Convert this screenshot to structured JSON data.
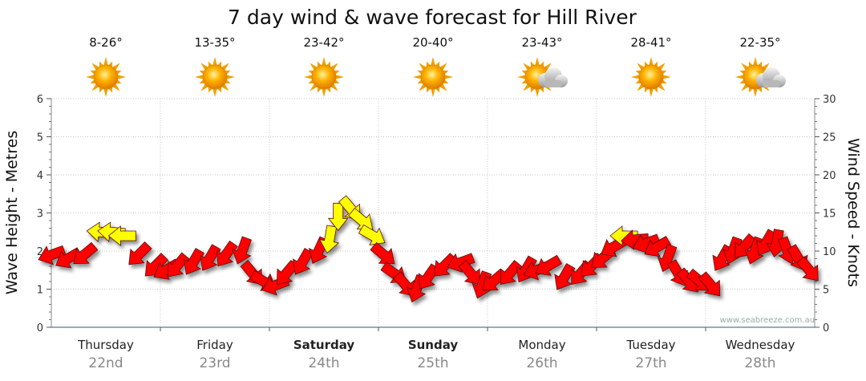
{
  "chart_data": {
    "type": "line",
    "title": "7 day wind & wave forecast for Hill River",
    "ylabel": "Wave Height - Metres",
    "y2label": "Wind Speed - Knots",
    "ylim": [
      0,
      6
    ],
    "y2lim": [
      0,
      30
    ],
    "yticks": [
      "0",
      "1",
      "2",
      "3",
      "4",
      "5",
      "6"
    ],
    "y2ticks": [
      "0",
      "5",
      "10",
      "15",
      "20",
      "25",
      "30"
    ],
    "grid": true,
    "days": [
      {
        "name": "Thursday",
        "date": "22nd",
        "temp": "8-26°",
        "weather": "sun-icon",
        "bold": false
      },
      {
        "name": "Friday",
        "date": "23rd",
        "temp": "13-35°",
        "weather": "sun-icon",
        "bold": false
      },
      {
        "name": "Saturday",
        "date": "24th",
        "temp": "23-42°",
        "weather": "sun-icon",
        "bold": true
      },
      {
        "name": "Sunday",
        "date": "25th",
        "temp": "20-40°",
        "weather": "sun-icon",
        "bold": true
      },
      {
        "name": "Monday",
        "date": "26th",
        "temp": "23-43°",
        "weather": "partly-cloudy-icon",
        "bold": false
      },
      {
        "name": "Tuesday",
        "date": "27th",
        "temp": "28-41°",
        "weather": "sun-icon",
        "bold": false
      },
      {
        "name": "Wednesday",
        "date": "28th",
        "temp": "22-35°",
        "weather": "partly-cloudy-icon",
        "bold": false
      }
    ],
    "series": [
      {
        "type": "wind-arrows",
        "unit": "knots",
        "colors": {
          "strong": "#ff0000",
          "moderate": "#ffff00"
        },
        "points": [
          {
            "day": 0.0,
            "speed": 9.5,
            "dir": 250,
            "color": "strong"
          },
          {
            "day": 0.15,
            "speed": 9.0,
            "dir": 240,
            "color": "strong"
          },
          {
            "day": 0.3,
            "speed": 9.5,
            "dir": 230,
            "color": "strong"
          },
          {
            "day": 0.45,
            "speed": 12.5,
            "dir": 275,
            "color": "moderate"
          },
          {
            "day": 0.55,
            "speed": 12.5,
            "dir": 275,
            "color": "moderate"
          },
          {
            "day": 0.65,
            "speed": 12.0,
            "dir": 270,
            "color": "moderate"
          },
          {
            "day": 0.8,
            "speed": 9.5,
            "dir": 225,
            "color": "strong"
          },
          {
            "day": 0.95,
            "speed": 8.0,
            "dir": 225,
            "color": "strong"
          },
          {
            "day": 1.05,
            "speed": 7.5,
            "dir": 240,
            "color": "strong"
          },
          {
            "day": 1.15,
            "speed": 8.0,
            "dir": 220,
            "color": "strong"
          },
          {
            "day": 1.3,
            "speed": 8.5,
            "dir": 210,
            "color": "strong"
          },
          {
            "day": 1.45,
            "speed": 9.0,
            "dir": 210,
            "color": "strong"
          },
          {
            "day": 1.6,
            "speed": 9.5,
            "dir": 215,
            "color": "strong"
          },
          {
            "day": 1.75,
            "speed": 10.0,
            "dir": 200,
            "color": "strong"
          },
          {
            "day": 1.85,
            "speed": 7.0,
            "dir": 140,
            "color": "strong"
          },
          {
            "day": 1.95,
            "speed": 6.0,
            "dir": 120,
            "color": "strong"
          },
          {
            "day": 2.05,
            "speed": 5.5,
            "dir": 250,
            "color": "strong"
          },
          {
            "day": 2.15,
            "speed": 7.0,
            "dir": 220,
            "color": "strong"
          },
          {
            "day": 2.3,
            "speed": 8.5,
            "dir": 210,
            "color": "strong"
          },
          {
            "day": 2.45,
            "speed": 10.0,
            "dir": 205,
            "color": "strong"
          },
          {
            "day": 2.55,
            "speed": 11.5,
            "dir": 190,
            "color": "moderate"
          },
          {
            "day": 2.63,
            "speed": 14.5,
            "dir": 180,
            "color": "moderate"
          },
          {
            "day": 2.75,
            "speed": 15.5,
            "dir": 140,
            "color": "moderate"
          },
          {
            "day": 2.85,
            "speed": 14.0,
            "dir": 130,
            "color": "moderate"
          },
          {
            "day": 2.95,
            "speed": 12.0,
            "dir": 120,
            "color": "moderate"
          },
          {
            "day": 3.05,
            "speed": 9.5,
            "dir": 130,
            "color": "strong"
          },
          {
            "day": 3.15,
            "speed": 7.0,
            "dir": 125,
            "color": "strong"
          },
          {
            "day": 3.25,
            "speed": 5.5,
            "dir": 140,
            "color": "strong"
          },
          {
            "day": 3.35,
            "speed": 5.0,
            "dir": 200,
            "color": "strong"
          },
          {
            "day": 3.45,
            "speed": 6.5,
            "dir": 215,
            "color": "strong"
          },
          {
            "day": 3.6,
            "speed": 8.0,
            "dir": 225,
            "color": "strong"
          },
          {
            "day": 3.75,
            "speed": 8.5,
            "dir": 250,
            "color": "strong"
          },
          {
            "day": 3.85,
            "speed": 7.0,
            "dir": 140,
            "color": "strong"
          },
          {
            "day": 3.95,
            "speed": 5.5,
            "dir": 200,
            "color": "strong"
          },
          {
            "day": 4.05,
            "speed": 6.0,
            "dir": 230,
            "color": "strong"
          },
          {
            "day": 4.2,
            "speed": 7.0,
            "dir": 220,
            "color": "strong"
          },
          {
            "day": 4.35,
            "speed": 7.5,
            "dir": 210,
            "color": "strong"
          },
          {
            "day": 4.45,
            "speed": 7.5,
            "dir": 250,
            "color": "strong"
          },
          {
            "day": 4.55,
            "speed": 8.0,
            "dir": 240,
            "color": "strong"
          },
          {
            "day": 4.7,
            "speed": 6.5,
            "dir": 210,
            "color": "strong"
          },
          {
            "day": 4.85,
            "speed": 7.0,
            "dir": 220,
            "color": "strong"
          },
          {
            "day": 4.95,
            "speed": 8.0,
            "dir": 225,
            "color": "strong"
          },
          {
            "day": 5.05,
            "speed": 9.0,
            "dir": 230,
            "color": "strong"
          },
          {
            "day": 5.15,
            "speed": 10.5,
            "dir": 240,
            "color": "strong"
          },
          {
            "day": 5.25,
            "speed": 12.0,
            "dir": 270,
            "color": "moderate"
          },
          {
            "day": 5.35,
            "speed": 11.5,
            "dir": 265,
            "color": "strong"
          },
          {
            "day": 5.45,
            "speed": 11.0,
            "dir": 250,
            "color": "strong"
          },
          {
            "day": 5.55,
            "speed": 10.5,
            "dir": 240,
            "color": "strong"
          },
          {
            "day": 5.65,
            "speed": 9.0,
            "dir": 200,
            "color": "strong"
          },
          {
            "day": 5.75,
            "speed": 7.0,
            "dir": 150,
            "color": "strong"
          },
          {
            "day": 5.85,
            "speed": 6.0,
            "dir": 140,
            "color": "strong"
          },
          {
            "day": 5.95,
            "speed": 6.0,
            "dir": 130,
            "color": "strong"
          },
          {
            "day": 6.05,
            "speed": 5.5,
            "dir": 140,
            "color": "strong"
          },
          {
            "day": 6.15,
            "speed": 9.0,
            "dir": 210,
            "color": "strong"
          },
          {
            "day": 6.25,
            "speed": 10.0,
            "dir": 200,
            "color": "strong"
          },
          {
            "day": 6.35,
            "speed": 10.5,
            "dir": 220,
            "color": "strong"
          },
          {
            "day": 6.45,
            "speed": 10.0,
            "dir": 200,
            "color": "strong"
          },
          {
            "day": 6.55,
            "speed": 11.0,
            "dir": 210,
            "color": "strong"
          },
          {
            "day": 6.65,
            "speed": 11.0,
            "dir": 190,
            "color": "strong"
          },
          {
            "day": 6.75,
            "speed": 10.0,
            "dir": 160,
            "color": "strong"
          },
          {
            "day": 6.85,
            "speed": 9.0,
            "dir": 150,
            "color": "strong"
          },
          {
            "day": 6.95,
            "speed": 7.5,
            "dir": 140,
            "color": "strong"
          }
        ]
      }
    ],
    "watermark": "www.seabreeze.com.au"
  }
}
